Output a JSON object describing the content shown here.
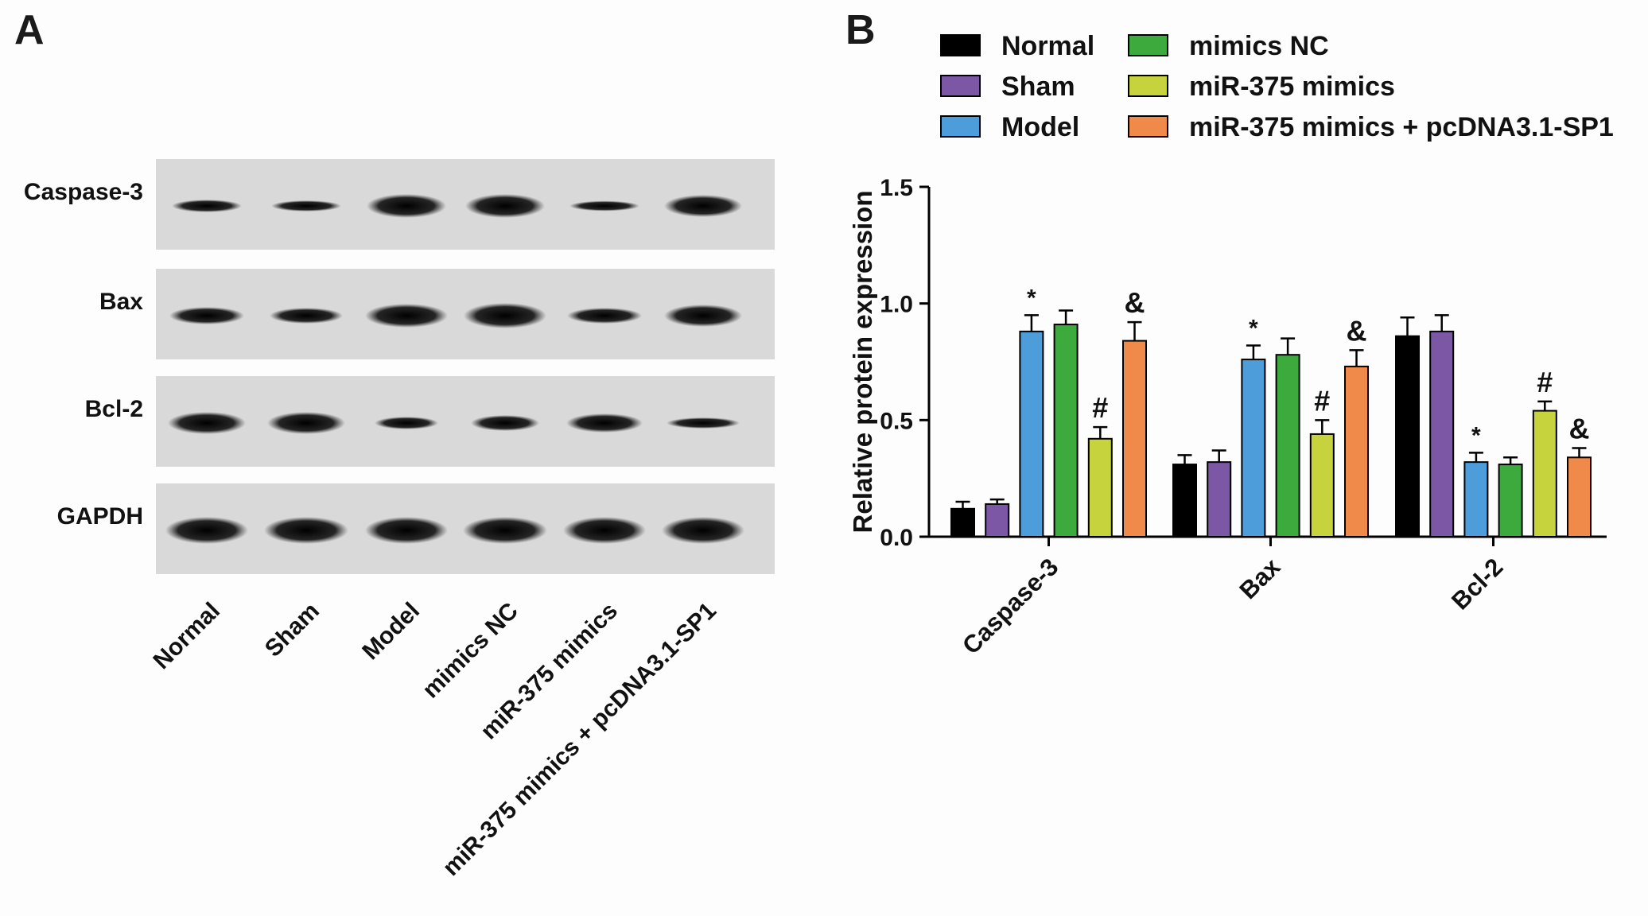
{
  "panels": {
    "a_label": "A",
    "b_label": "B"
  },
  "blot": {
    "proteins": [
      "Caspase-3",
      "Bax",
      "Bcl-2",
      "GAPDH"
    ],
    "lanes": [
      "Normal",
      "Sham",
      "Model",
      "mimics NC",
      "miR-375 mimics",
      "miR-375 mimics + pcDNA3.1-SP1"
    ]
  },
  "colors": {
    "Normal": "#000000",
    "Sham": "#7b57a6",
    "Model": "#4d9ddb",
    "mimics NC": "#3daa3d",
    "miR-375 mimics": "#c7d33c",
    "miR-375 mimics + pcDNA3.1-SP1": "#f08a4b"
  },
  "chart_data": {
    "type": "bar",
    "ylabel": "Relative protein expression",
    "ylim": [
      0,
      1.5
    ],
    "yticks": [
      "0.0",
      "0.5",
      "1.0",
      "1.5"
    ],
    "categories": [
      "Caspase-3",
      "Bax",
      "Bcl-2"
    ],
    "legend_position": "top",
    "series": [
      {
        "name": "Normal",
        "values": [
          0.12,
          0.31,
          0.86
        ],
        "errors": [
          0.03,
          0.04,
          0.08
        ],
        "marks": [
          "",
          "",
          ""
        ]
      },
      {
        "name": "Sham",
        "values": [
          0.14,
          0.32,
          0.88
        ],
        "errors": [
          0.02,
          0.05,
          0.07
        ],
        "marks": [
          "",
          "",
          ""
        ]
      },
      {
        "name": "Model",
        "values": [
          0.88,
          0.76,
          0.32
        ],
        "errors": [
          0.07,
          0.06,
          0.04
        ],
        "marks": [
          "*",
          "*",
          "*"
        ]
      },
      {
        "name": "mimics NC",
        "values": [
          0.91,
          0.78,
          0.31
        ],
        "errors": [
          0.06,
          0.07,
          0.03
        ],
        "marks": [
          "",
          "",
          ""
        ]
      },
      {
        "name": "miR-375 mimics",
        "values": [
          0.42,
          0.44,
          0.54
        ],
        "errors": [
          0.05,
          0.06,
          0.04
        ],
        "marks": [
          "#",
          "#",
          "#"
        ]
      },
      {
        "name": "miR-375 mimics + pcDNA3.1-SP1",
        "values": [
          0.84,
          0.73,
          0.34
        ],
        "errors": [
          0.08,
          0.07,
          0.04
        ],
        "marks": [
          "&",
          "&",
          "&"
        ]
      }
    ]
  }
}
